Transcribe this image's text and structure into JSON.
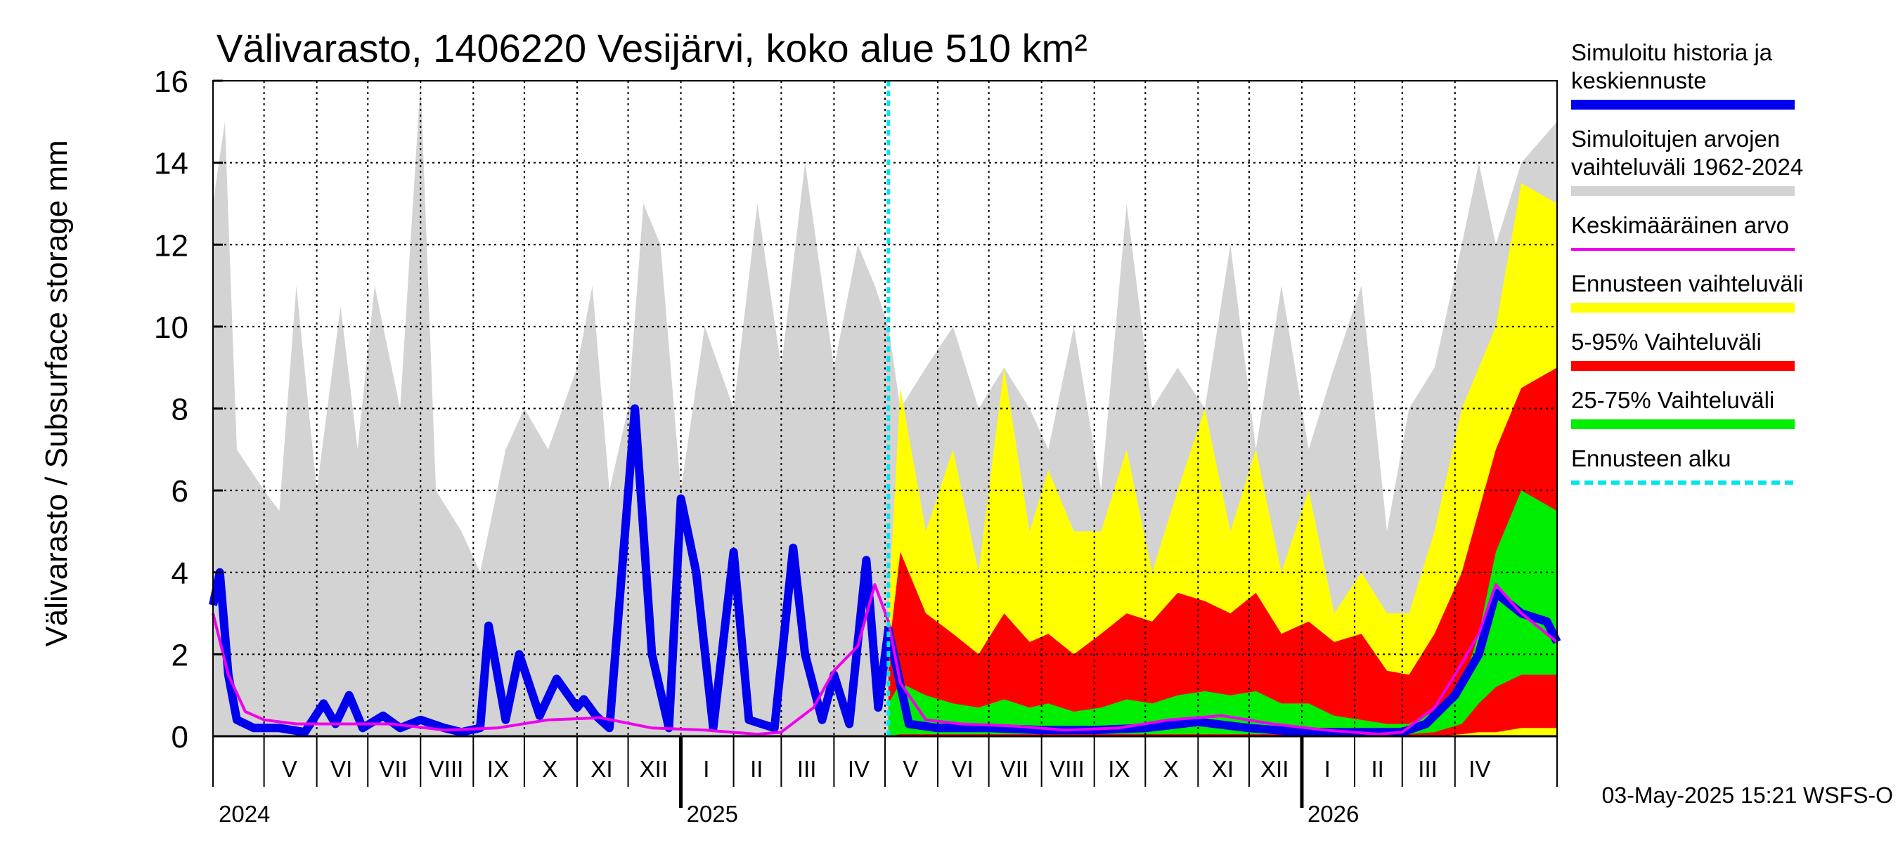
{
  "chart_data": {
    "type": "area",
    "title": "Välivarasto, 1406220 Vesijärvi, koko alue 510 km²",
    "ylabel": "Välivarasto / Subsurface storage  mm",
    "ylim": [
      0,
      16
    ],
    "yticks": [
      "0",
      "2",
      "4",
      "6",
      "8",
      "10",
      "12",
      "14",
      "16"
    ],
    "ytick_values": [
      0,
      2,
      4,
      6,
      8,
      10,
      12,
      14,
      16
    ],
    "xlim": [
      "2024-04-01",
      "2026-05-31"
    ],
    "forecast_start": "2025-05-03",
    "grid": true,
    "legend_placement": "right",
    "months": [
      {
        "label": "V",
        "start": "2024-05-01",
        "end": "2024-05-31"
      },
      {
        "label": "VI",
        "start": "2024-06-01",
        "end": "2024-06-30"
      },
      {
        "label": "VII",
        "start": "2024-07-01",
        "end": "2024-07-31"
      },
      {
        "label": "VIII",
        "start": "2024-08-01",
        "end": "2024-08-31"
      },
      {
        "label": "IX",
        "start": "2024-09-01",
        "end": "2024-09-30"
      },
      {
        "label": "X",
        "start": "2024-10-01",
        "end": "2024-10-31"
      },
      {
        "label": "XI",
        "start": "2024-11-01",
        "end": "2024-11-30"
      },
      {
        "label": "XII",
        "start": "2024-12-01",
        "end": "2024-12-31"
      },
      {
        "label": "I",
        "start": "2025-01-01",
        "end": "2025-01-31"
      },
      {
        "label": "II",
        "start": "2025-02-01",
        "end": "2025-02-28"
      },
      {
        "label": "III",
        "start": "2025-03-01",
        "end": "2025-03-31"
      },
      {
        "label": "IV",
        "start": "2025-04-01",
        "end": "2025-04-30"
      },
      {
        "label": "V",
        "start": "2025-05-01",
        "end": "2025-05-31"
      },
      {
        "label": "VI",
        "start": "2025-06-01",
        "end": "2025-06-30"
      },
      {
        "label": "VII",
        "start": "2025-07-01",
        "end": "2025-07-31"
      },
      {
        "label": "VIII",
        "start": "2025-08-01",
        "end": "2025-08-31"
      },
      {
        "label": "IX",
        "start": "2025-09-01",
        "end": "2025-09-30"
      },
      {
        "label": "X",
        "start": "2025-10-01",
        "end": "2025-10-31"
      },
      {
        "label": "XI",
        "start": "2025-11-01",
        "end": "2025-11-30"
      },
      {
        "label": "XII",
        "start": "2025-12-01",
        "end": "2025-12-31"
      },
      {
        "label": "I",
        "start": "2026-01-01",
        "end": "2026-01-31"
      },
      {
        "label": "II",
        "start": "2026-02-01",
        "end": "2026-02-28"
      },
      {
        "label": "III",
        "start": "2026-03-01",
        "end": "2026-03-31"
      },
      {
        "label": "IV",
        "start": "2026-04-01",
        "end": "2026-04-30"
      }
    ],
    "years": [
      {
        "label": "2024",
        "date": "2024-04-01"
      },
      {
        "label": "2025",
        "date": "2025-01-01"
      },
      {
        "label": "2026",
        "date": "2026-01-01"
      }
    ],
    "series": [
      {
        "name": "Simuloitujen arvojen vaihteluväli 1962-2024",
        "kind": "band",
        "color": "#d3d3d3",
        "x": [
          "2024-04-01",
          "2024-04-08",
          "2024-04-15",
          "2024-05-01",
          "2024-05-10",
          "2024-05-20",
          "2024-06-01",
          "2024-06-15",
          "2024-06-25",
          "2024-07-05",
          "2024-07-20",
          "2024-08-01",
          "2024-08-10",
          "2024-08-25",
          "2024-09-05",
          "2024-09-20",
          "2024-10-01",
          "2024-10-15",
          "2024-11-01",
          "2024-11-10",
          "2024-11-20",
          "2024-12-01",
          "2024-12-10",
          "2024-12-20",
          "2025-01-01",
          "2025-01-15",
          "2025-02-01",
          "2025-02-15",
          "2025-03-01",
          "2025-03-15",
          "2025-04-01",
          "2025-04-15",
          "2025-04-25",
          "2025-05-03",
          "2025-05-10",
          "2025-05-25",
          "2025-06-10",
          "2025-06-25",
          "2025-07-10",
          "2025-07-25",
          "2025-08-05",
          "2025-08-20",
          "2025-09-05",
          "2025-09-20",
          "2025-10-05",
          "2025-10-20",
          "2025-11-05",
          "2025-11-20",
          "2025-12-05",
          "2025-12-20",
          "2026-01-05",
          "2026-01-20",
          "2026-02-05",
          "2026-02-20",
          "2026-03-05",
          "2026-03-20",
          "2026-04-05",
          "2026-04-15",
          "2026-04-25",
          "2026-05-10",
          "2026-05-31"
        ],
        "low": [
          0,
          0,
          0,
          0,
          0,
          0,
          0,
          0,
          0,
          0,
          0,
          0,
          0,
          0,
          0,
          0,
          0,
          0,
          0,
          0,
          0,
          0,
          0,
          0,
          0,
          0,
          0,
          0,
          0,
          0,
          0,
          0,
          0,
          0,
          0,
          0,
          0,
          0,
          0,
          0,
          0,
          0,
          0,
          0,
          0,
          0,
          0,
          0,
          0,
          0,
          0,
          0,
          0,
          0,
          0,
          0,
          0,
          0,
          0,
          0,
          0
        ],
        "high": [
          13,
          15,
          7,
          6,
          5.5,
          11,
          6,
          10.5,
          7,
          11,
          8,
          16,
          6,
          5,
          4,
          7,
          8,
          7,
          9,
          11,
          6,
          8,
          13,
          12,
          6,
          10,
          8,
          13,
          9,
          14,
          9,
          12,
          11,
          10,
          8,
          9,
          10,
          8,
          9,
          8,
          7,
          10,
          6,
          13,
          8,
          9,
          8,
          12,
          7,
          11,
          7,
          9,
          11,
          5,
          8,
          9,
          12,
          14,
          12,
          14,
          15
        ]
      },
      {
        "name": "Ennusteen vaihteluväli",
        "kind": "band",
        "color": "#ffff00",
        "x": [
          "2025-05-03",
          "2025-05-10",
          "2025-05-25",
          "2025-06-10",
          "2025-06-25",
          "2025-07-10",
          "2025-07-25",
          "2025-08-05",
          "2025-08-20",
          "2025-09-05",
          "2025-09-20",
          "2025-10-05",
          "2025-10-20",
          "2025-11-05",
          "2025-11-20",
          "2025-12-05",
          "2025-12-20",
          "2026-01-05",
          "2026-01-20",
          "2026-02-05",
          "2026-02-20",
          "2026-03-05",
          "2026-03-20",
          "2026-04-05",
          "2026-04-15",
          "2026-04-25",
          "2026-05-10",
          "2026-05-31"
        ],
        "low": [
          0,
          0,
          0,
          0,
          0,
          0,
          0,
          0,
          0,
          0,
          0,
          0,
          0,
          0,
          0,
          0,
          0,
          0,
          0,
          0,
          0,
          0,
          0,
          0,
          0,
          0,
          0,
          0
        ],
        "high": [
          3,
          8.5,
          5,
          7,
          4,
          9,
          5,
          6.5,
          5,
          5,
          7,
          4,
          6,
          8,
          5,
          7,
          4,
          6,
          3,
          4,
          3,
          3,
          5,
          8,
          9,
          10,
          13.5,
          13
        ]
      },
      {
        "name": "5-95% Vaihteluväli",
        "kind": "band",
        "color": "#ff0000",
        "x": [
          "2025-05-03",
          "2025-05-10",
          "2025-05-25",
          "2025-06-10",
          "2025-06-25",
          "2025-07-10",
          "2025-07-25",
          "2025-08-05",
          "2025-08-20",
          "2025-09-05",
          "2025-09-20",
          "2025-10-05",
          "2025-10-20",
          "2025-11-05",
          "2025-11-20",
          "2025-12-05",
          "2025-12-20",
          "2026-01-05",
          "2026-01-20",
          "2026-02-05",
          "2026-02-20",
          "2026-03-05",
          "2026-03-20",
          "2026-04-05",
          "2026-04-15",
          "2026-04-25",
          "2026-05-10",
          "2026-05-31"
        ],
        "low": [
          0,
          0,
          0,
          0,
          0,
          0,
          0,
          0,
          0,
          0,
          0,
          0,
          0,
          0,
          0,
          0,
          0,
          0,
          0,
          0,
          0,
          0,
          0,
          0.05,
          0.1,
          0.1,
          0.2,
          0.2
        ],
        "high": [
          2,
          4.5,
          3,
          2.5,
          2,
          3,
          2.3,
          2.5,
          2,
          2.5,
          3,
          2.8,
          3.5,
          3.3,
          3,
          3.5,
          2.5,
          2.8,
          2.3,
          2.5,
          1.6,
          1.5,
          2.5,
          4,
          5.5,
          7,
          8.5,
          9
        ]
      },
      {
        "name": "25-75% Vaihteluväli",
        "kind": "band",
        "color": "#00ee00",
        "x": [
          "2025-05-03",
          "2025-05-10",
          "2025-05-25",
          "2025-06-10",
          "2025-06-25",
          "2025-07-10",
          "2025-07-25",
          "2025-08-05",
          "2025-08-20",
          "2025-09-05",
          "2025-09-20",
          "2025-10-05",
          "2025-10-20",
          "2025-11-05",
          "2025-11-20",
          "2025-12-05",
          "2025-12-20",
          "2026-01-05",
          "2026-01-20",
          "2026-02-05",
          "2026-02-20",
          "2026-03-05",
          "2026-03-20",
          "2026-04-05",
          "2026-04-15",
          "2026-04-25",
          "2026-05-10",
          "2026-05-31"
        ],
        "low": [
          0,
          0.05,
          0.05,
          0.05,
          0.05,
          0.05,
          0.05,
          0.05,
          0.05,
          0.05,
          0.05,
          0.05,
          0.05,
          0.05,
          0.05,
          0.05,
          0.05,
          0.05,
          0.05,
          0.05,
          0.05,
          0.05,
          0.1,
          0.3,
          0.8,
          1.2,
          1.5,
          1.5
        ],
        "high": [
          0.8,
          1.3,
          1,
          0.8,
          0.7,
          0.9,
          0.7,
          0.8,
          0.6,
          0.7,
          0.9,
          0.8,
          1,
          1.1,
          1,
          1.1,
          0.8,
          0.8,
          0.5,
          0.4,
          0.3,
          0.3,
          0.6,
          1.2,
          2.5,
          4.5,
          6,
          5.5
        ]
      },
      {
        "name": "Simuloitu historia ja keskiennuste",
        "kind": "line",
        "color": "#0000ee",
        "width": 12,
        "x": [
          "2024-04-01",
          "2024-04-05",
          "2024-04-10",
          "2024-04-15",
          "2024-04-25",
          "2024-05-10",
          "2024-05-25",
          "2024-06-05",
          "2024-06-12",
          "2024-06-20",
          "2024-06-28",
          "2024-07-10",
          "2024-07-20",
          "2024-08-01",
          "2024-08-15",
          "2024-08-25",
          "2024-09-05",
          "2024-09-10",
          "2024-09-20",
          "2024-09-28",
          "2024-10-10",
          "2024-10-20",
          "2024-11-01",
          "2024-11-05",
          "2024-11-12",
          "2024-11-20",
          "2024-12-05",
          "2024-12-15",
          "2024-12-25",
          "2025-01-01",
          "2025-01-10",
          "2025-01-20",
          "2025-02-01",
          "2025-02-10",
          "2025-02-25",
          "2025-03-08",
          "2025-03-15",
          "2025-03-25",
          "2025-04-01",
          "2025-04-10",
          "2025-04-20",
          "2025-04-27",
          "2025-05-03",
          "2025-05-15",
          "2025-06-01",
          "2025-07-01",
          "2025-08-01",
          "2025-09-01",
          "2025-10-01",
          "2025-11-01",
          "2025-12-01",
          "2026-01-01",
          "2026-02-01",
          "2026-03-01",
          "2026-03-15",
          "2026-04-01",
          "2026-04-15",
          "2026-04-25",
          "2026-05-10",
          "2026-05-25",
          "2026-05-31"
        ],
        "y": [
          3.2,
          4,
          1.5,
          0.4,
          0.2,
          0.2,
          0.1,
          0.8,
          0.3,
          1,
          0.2,
          0.5,
          0.2,
          0.4,
          0.2,
          0.1,
          0.2,
          2.7,
          0.4,
          2,
          0.5,
          1.4,
          0.7,
          0.9,
          0.5,
          0.2,
          8,
          2,
          0.2,
          5.8,
          4,
          0.2,
          4.5,
          0.4,
          0.2,
          4.6,
          2,
          0.4,
          1.5,
          0.3,
          4.3,
          0.7,
          2.6,
          0.3,
          0.2,
          0.2,
          0.15,
          0.15,
          0.2,
          0.35,
          0.2,
          0.1,
          0.1,
          0.1,
          0.3,
          1,
          2,
          3.5,
          3,
          2.8,
          2.3
        ]
      },
      {
        "name": "Keskimääräinen arvo",
        "kind": "line",
        "color": "#ee00ee",
        "width": 4,
        "x": [
          "2024-04-01",
          "2024-04-10",
          "2024-04-20",
          "2024-05-01",
          "2024-05-20",
          "2024-06-15",
          "2024-07-15",
          "2024-08-15",
          "2024-09-15",
          "2024-10-15",
          "2024-11-15",
          "2024-12-15",
          "2025-01-15",
          "2025-02-15",
          "2025-03-01",
          "2025-03-20",
          "2025-04-01",
          "2025-04-15",
          "2025-04-25",
          "2025-05-03",
          "2025-05-10",
          "2025-05-25",
          "2025-06-15",
          "2025-07-15",
          "2025-08-15",
          "2025-09-15",
          "2025-10-15",
          "2025-11-15",
          "2025-12-15",
          "2026-01-15",
          "2026-02-15",
          "2026-03-01",
          "2026-03-20",
          "2026-04-01",
          "2026-04-15",
          "2026-04-25",
          "2026-05-10",
          "2026-05-31"
        ],
        "y": [
          3,
          1.5,
          0.6,
          0.4,
          0.3,
          0.3,
          0.3,
          0.15,
          0.2,
          0.4,
          0.45,
          0.2,
          0.15,
          0.05,
          0.1,
          0.7,
          1.6,
          2.2,
          3.7,
          2.8,
          1.3,
          0.4,
          0.3,
          0.25,
          0.15,
          0.2,
          0.4,
          0.5,
          0.3,
          0.15,
          0.05,
          0.1,
          0.7,
          1.5,
          2.5,
          3.7,
          3,
          2.3
        ]
      }
    ],
    "legend": [
      {
        "lines": [
          "Simuloitu historia ja",
          "keskiennuste"
        ],
        "color": "#0000ee",
        "style": "thick"
      },
      {
        "lines": [
          "Simuloitujen arvojen",
          "vaihteluväli 1962-2024"
        ],
        "color": "#d3d3d3",
        "style": "thick"
      },
      {
        "lines": [
          "Keskimääräinen arvo"
        ],
        "color": "#ee00ee",
        "style": "thin"
      },
      {
        "lines": [
          "Ennusteen vaihteluväli"
        ],
        "color": "#ffff00",
        "style": "thick"
      },
      {
        "lines": [
          "5-95% Vaihteluväli"
        ],
        "color": "#ff0000",
        "style": "thick"
      },
      {
        "lines": [
          "25-75% Vaihteluväli"
        ],
        "color": "#00ee00",
        "style": "thick"
      },
      {
        "lines": [
          "Ennusteen alku"
        ],
        "color": "#00e5ee",
        "style": "dashed"
      }
    ],
    "forecast_color": "#00e5ee",
    "footer": "03-May-2025 15:21 WSFS-O"
  }
}
